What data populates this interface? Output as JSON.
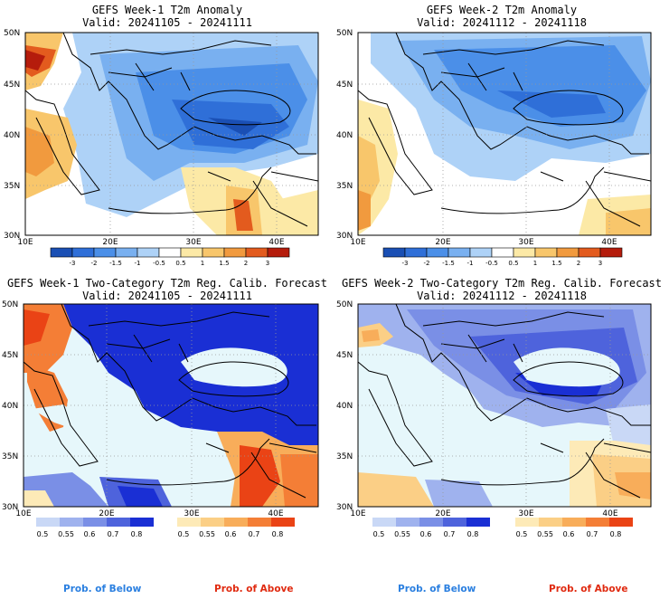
{
  "panels": [
    {
      "title": "GEFS Week-1 T2m Anomaly",
      "valid": "Valid: 20241105 - 20241111"
    },
    {
      "title": "GEFS Week-2 T2m Anomaly",
      "valid": "Valid: 20241112 - 20241118"
    },
    {
      "title": "GEFS Week-1 Two-Category T2m Reg. Calib. Forecast",
      "valid": "Valid: 20241105 - 20241111"
    },
    {
      "title": "GEFS Week-2 Two-Category T2m Reg. Calib. Forecast",
      "valid": "Valid: 20241112 - 20241118"
    }
  ],
  "axes": {
    "lat_labels": [
      "50N",
      "45N",
      "40N",
      "35N",
      "30N"
    ],
    "lon_labels": [
      "10E",
      "20E",
      "30E",
      "40E"
    ]
  },
  "anomaly_colorbar": {
    "labels": [
      "-3",
      "-2",
      "-1.5",
      "-1",
      "-0.5",
      "0.5",
      "1",
      "1.5",
      "2",
      "3"
    ],
    "colors": [
      "#1a4fb4",
      "#2f6fd8",
      "#4b8fe8",
      "#79b0f0",
      "#aed2f7",
      "#ffffff",
      "#fce9a6",
      "#f8c66b",
      "#f19a3e",
      "#e35b1e",
      "#b51c0c"
    ]
  },
  "prob_colorbars": {
    "below": {
      "labels": [
        "0.5",
        "0.55",
        "0.6",
        "0.7",
        "0.8"
      ],
      "colors": [
        "#c9d8f6",
        "#9fb2ee",
        "#7a8fe6",
        "#4e63dc",
        "#1a2fd4"
      ]
    },
    "above": {
      "labels": [
        "0.5",
        "0.55",
        "0.6",
        "0.7",
        "0.8"
      ],
      "colors": [
        "#fdeab7",
        "#fbcf86",
        "#f8ad5a",
        "#f47e36",
        "#ea4315"
      ]
    }
  },
  "footer": {
    "below_label": "Prob. of Below",
    "above_label": "Prob. of Above",
    "below_color": "#2a7fe0",
    "above_color": "#e02a10"
  },
  "sea_color": "#e6f7fb"
}
